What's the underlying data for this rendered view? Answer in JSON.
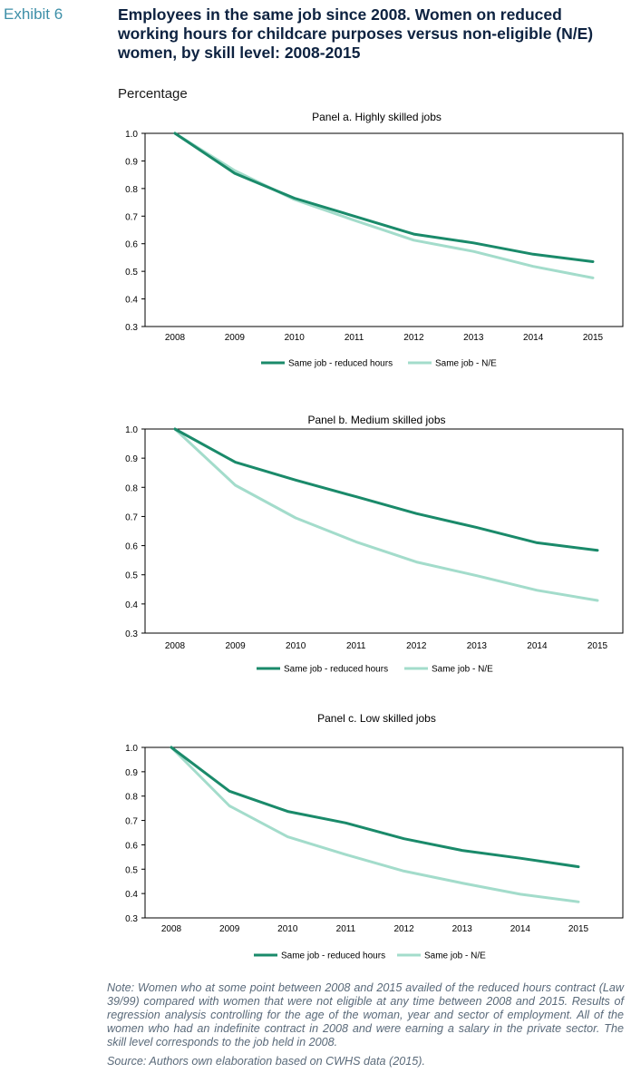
{
  "header": {
    "exhibit": "Exhibit 6",
    "title": "Employees in the same job since 2008. Women on reduced working hours for childcare purposes versus non-eligible (N/E) women, by skill level: 2008-2015",
    "subtitle": "Percentage"
  },
  "colors": {
    "reduced": "#1a8a6a",
    "ne": "#a3dccb",
    "axis": "#000000"
  },
  "chart_data": [
    {
      "type": "line",
      "title": "Panel a. Highly skilled jobs",
      "categories": [
        "2008",
        "2009",
        "2010",
        "2011",
        "2012",
        "2013",
        "2014",
        "2015"
      ],
      "yticks": [
        "0.3",
        "0.4",
        "0.5",
        "0.6",
        "0.7",
        "0.8",
        "0.9",
        "1.0"
      ],
      "ylim": [
        0.3,
        1.0
      ],
      "legend_position": "bottom",
      "series": [
        {
          "name": "Same job - reduced hours",
          "values": [
            1.0,
            0.855,
            0.765,
            0.7,
            0.635,
            0.603,
            0.562,
            0.535
          ]
        },
        {
          "name": "Same job - N/E",
          "values": [
            1.0,
            0.865,
            0.76,
            0.685,
            0.613,
            0.572,
            0.518,
            0.476
          ]
        }
      ]
    },
    {
      "type": "line",
      "title": "Panel b. Medium skilled jobs",
      "categories": [
        "2008",
        "2009",
        "2010",
        "2011",
        "2012",
        "2013",
        "2014",
        "2015"
      ],
      "yticks": [
        "0.3",
        "0.4",
        "0.5",
        "0.6",
        "0.7",
        "0.8",
        "0.9",
        "1.0"
      ],
      "ylim": [
        0.3,
        1.0
      ],
      "legend_position": "bottom",
      "series": [
        {
          "name": "Same job - reduced hours",
          "values": [
            1.0,
            0.886,
            0.825,
            0.768,
            0.71,
            0.662,
            0.61,
            0.584
          ]
        },
        {
          "name": "Same job - N/E",
          "values": [
            1.0,
            0.807,
            0.695,
            0.613,
            0.544,
            0.497,
            0.447,
            0.412
          ]
        }
      ]
    },
    {
      "type": "line",
      "title": "Panel c. Low skilled jobs",
      "categories": [
        "2008",
        "2009",
        "2010",
        "2011",
        "2012",
        "2013",
        "2014",
        "2015"
      ],
      "yticks": [
        "0.3",
        "0.4",
        "0.5",
        "0.6",
        "0.7",
        "0.8",
        "0.9",
        "1.0"
      ],
      "ylim": [
        0.3,
        1.0
      ],
      "legend_position": "bottom",
      "series": [
        {
          "name": "Same job - reduced hours",
          "values": [
            1.0,
            0.82,
            0.737,
            0.69,
            0.625,
            0.577,
            0.545,
            0.51
          ]
        },
        {
          "name": "Same job - N/E",
          "values": [
            1.0,
            0.76,
            0.633,
            0.56,
            0.492,
            0.443,
            0.397,
            0.366
          ]
        }
      ]
    }
  ],
  "footer": {
    "note": "Note: Women who at some point between 2008 and 2015 availed of the reduced hours contract (Law 39/99) compared with women that were not eligible at any time between 2008 and 2015. Results of regression analysis controlling for the age of the woman, year and sector of employment. All of the women who had an indefinite contract in 2008 and were earning a salary in the private sector. The skill level corresponds to the job held in 2008.",
    "source": "Source: Authors own elaboration based on CWHS data (2015)."
  }
}
